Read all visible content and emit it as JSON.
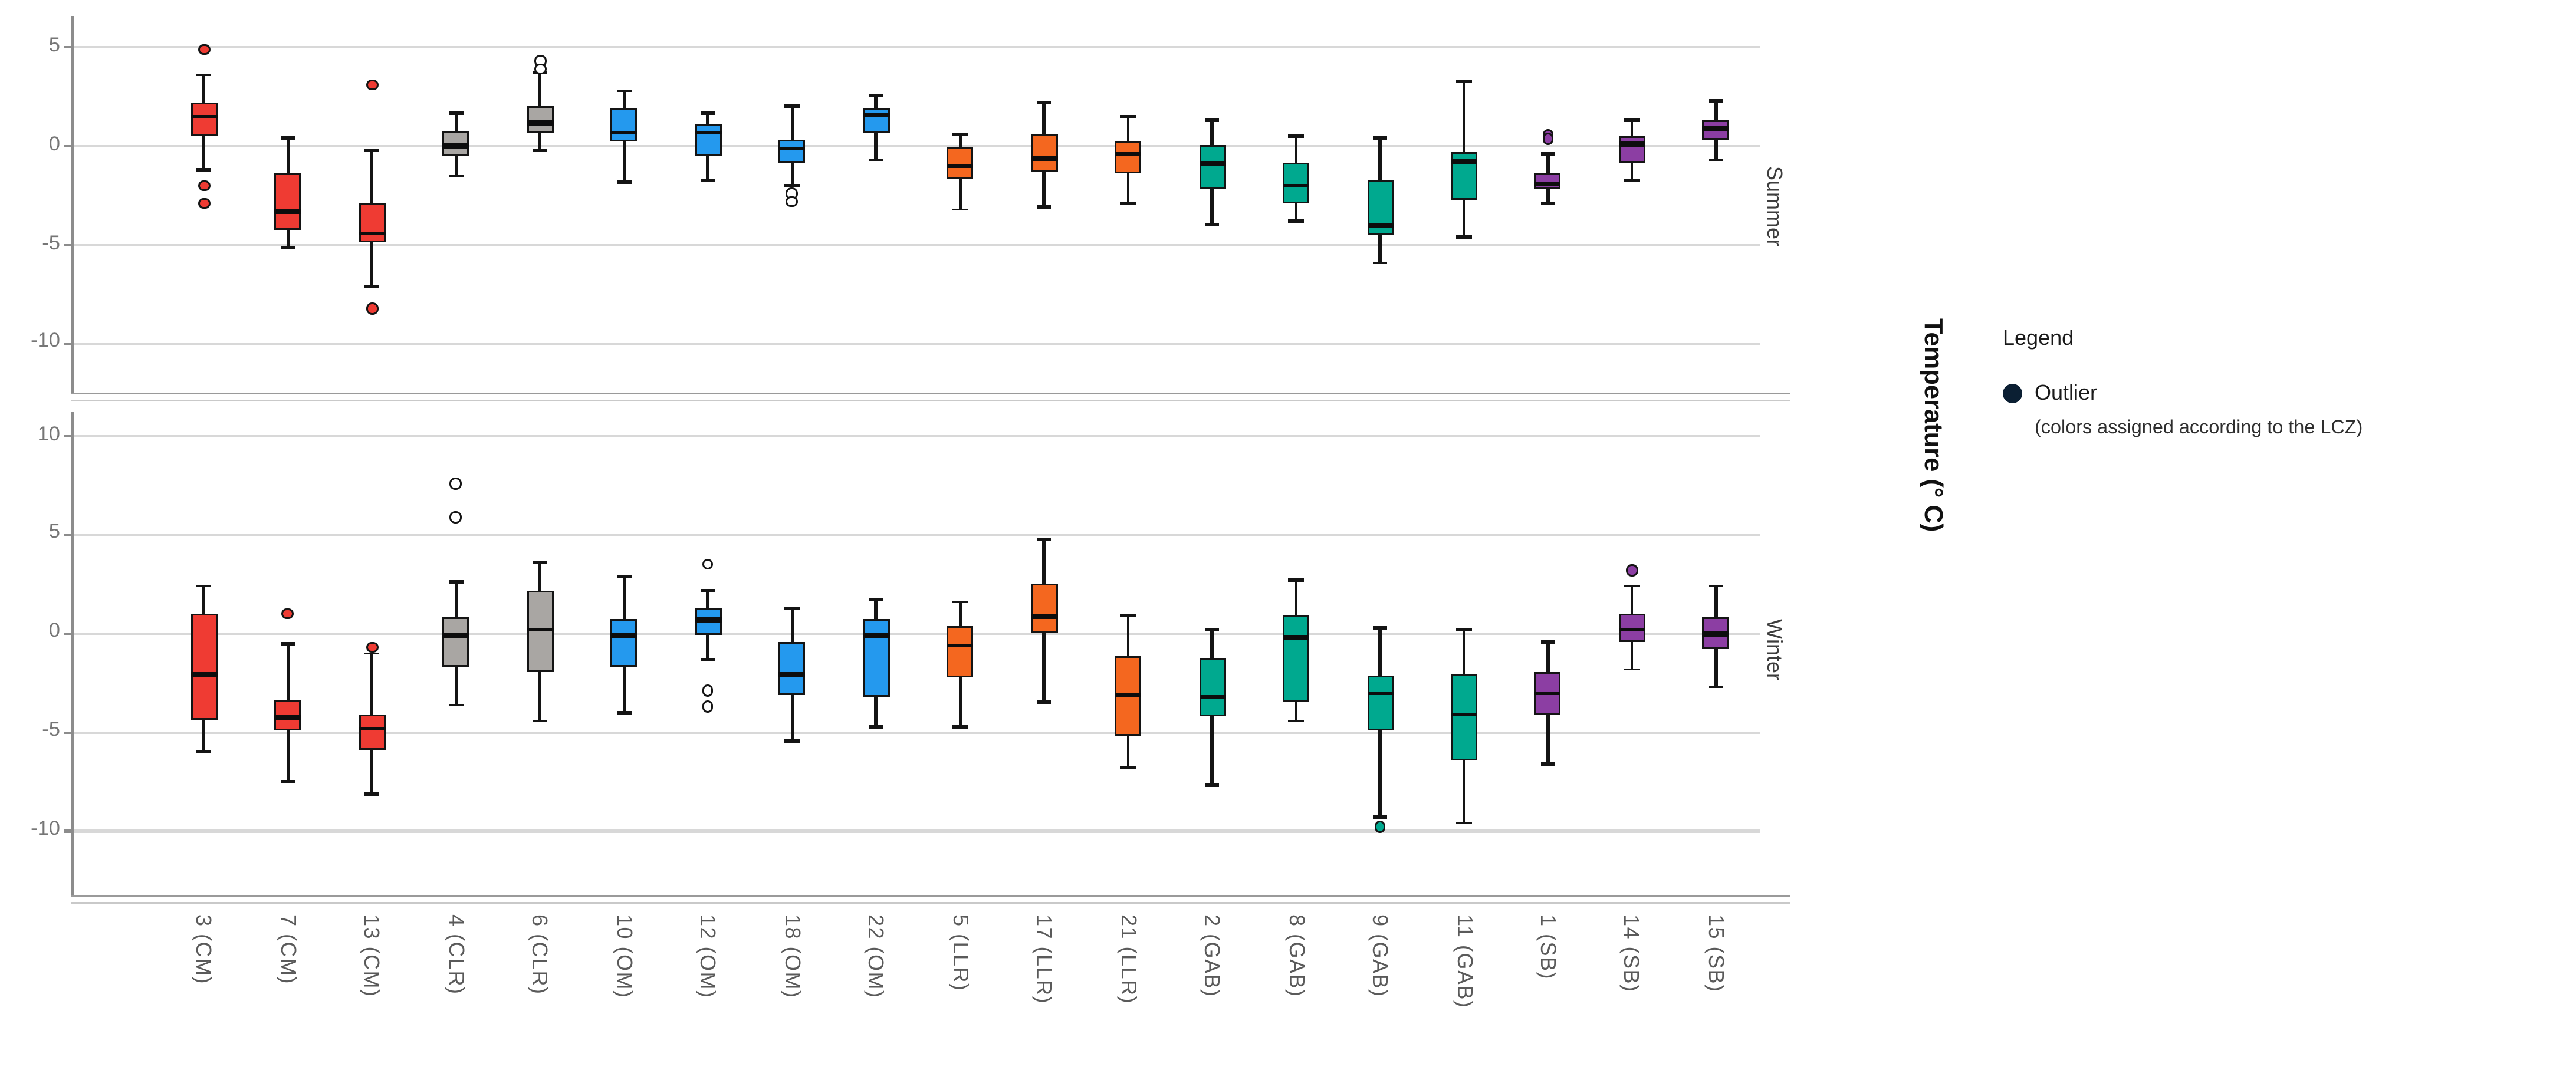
{
  "figure": {
    "background": "#ffffff",
    "accent_axis_color": "#8c8c8c",
    "gridline_color": "#d8d8d8"
  },
  "chart_data": {
    "type": "boxplot",
    "orientation": "vertical",
    "title": "",
    "ylabel": "Temperature (° C)",
    "xlabel": "",
    "grid": true,
    "legend_position": "right",
    "categories": [
      "3 (CM)",
      "7 (CM)",
      "13 (CM)",
      "4 (CLR)",
      "6 (CLR)",
      "10 (OM)",
      "12 (OM)",
      "18 (OM)",
      "22 (OM)",
      "5 (LLR)",
      "17 (LLR)",
      "21 (LLR)",
      "2 (GAB)",
      "8 (GAB)",
      "9 (GAB)",
      "11 (GAB)",
      "1 (SB)",
      "14 (SB)",
      "15 (SB)"
    ],
    "groups": {
      "CM": {
        "color": "#EF3B33",
        "outlier_fill": "#EF3B33"
      },
      "CLR": {
        "color": "#A9A6A3",
        "outlier_fill": "#FFFFFF"
      },
      "OM": {
        "color": "#2499EE",
        "outlier_fill": "#FFFFFF"
      },
      "LLR": {
        "color": "#F4671F",
        "outlier_fill": "#F4671F"
      },
      "GAB": {
        "color": "#00A98F",
        "outlier_fill": "#00A98F"
      },
      "SB": {
        "color": "#8C3EA3",
        "outlier_fill": "#8C3EA3"
      }
    },
    "panels": [
      {
        "label": "Summer",
        "yticks": [
          5,
          0,
          -5,
          -10
        ],
        "ylim": [
          -12.5,
          6.5
        ],
        "boxes": [
          {
            "category": "3 (CM)",
            "group": "CM",
            "low": -1.2,
            "q1": 0.5,
            "median": 1.5,
            "q3": 2.2,
            "high": 3.6,
            "outliers": [
              4.9,
              -2.0,
              -2.9
            ]
          },
          {
            "category": "7 (CM)",
            "group": "CM",
            "low": -5.1,
            "q1": -4.2,
            "median": -3.3,
            "q3": -1.4,
            "high": 0.4,
            "outliers": []
          },
          {
            "category": "13 (CM)",
            "group": "CM",
            "low": -7.1,
            "q1": -4.9,
            "median": -4.4,
            "q3": -2.9,
            "high": -0.2,
            "outliers": [
              3.1,
              -8.2
            ]
          },
          {
            "category": "4 (CLR)",
            "group": "CLR",
            "low": -1.5,
            "q1": -0.5,
            "median": 0.0,
            "q3": 0.8,
            "high": 1.7,
            "outliers": []
          },
          {
            "category": "6 (CLR)",
            "group": "CLR",
            "low": -0.2,
            "q1": 0.7,
            "median": 1.2,
            "q3": 2.0,
            "high": 3.7,
            "outliers": [
              4.3,
              3.9
            ]
          },
          {
            "category": "10 (OM)",
            "group": "OM",
            "low": -1.8,
            "q1": 0.2,
            "median": 0.7,
            "q3": 1.9,
            "high": 2.8,
            "outliers": []
          },
          {
            "category": "12 (OM)",
            "group": "OM",
            "low": -1.7,
            "q1": -0.5,
            "median": 0.7,
            "q3": 1.1,
            "high": 1.7,
            "outliers": []
          },
          {
            "category": "18 (OM)",
            "group": "OM",
            "low": -2.0,
            "q1": -0.8,
            "median": -0.1,
            "q3": 0.3,
            "high": 2.0,
            "outliers": [
              -2.4,
              -2.8
            ]
          },
          {
            "category": "22 (OM)",
            "group": "OM",
            "low": -0.7,
            "q1": 0.7,
            "median": 1.6,
            "q3": 1.9,
            "high": 2.6,
            "outliers": []
          },
          {
            "category": "5 (LLR)",
            "group": "LLR",
            "low": -3.2,
            "q1": -1.6,
            "median": -1.0,
            "q3": 0.0,
            "high": 0.6,
            "outliers": []
          },
          {
            "category": "17 (LLR)",
            "group": "LLR",
            "low": -3.1,
            "q1": -1.3,
            "median": -0.6,
            "q3": 0.6,
            "high": 2.2,
            "outliers": []
          },
          {
            "category": "21 (LLR)",
            "group": "LLR",
            "low": -2.9,
            "q1": -1.4,
            "median": -0.4,
            "q3": 0.2,
            "high": 1.5,
            "outliers": []
          },
          {
            "category": "2 (GAB)",
            "group": "GAB",
            "low": -4.0,
            "q1": -2.2,
            "median": -0.9,
            "q3": 0.1,
            "high": 1.3,
            "outliers": []
          },
          {
            "category": "8 (GAB)",
            "group": "GAB",
            "low": -3.8,
            "q1": -2.9,
            "median": -2.0,
            "q3": -0.8,
            "high": 0.5,
            "outliers": []
          },
          {
            "category": "9 (GAB)",
            "group": "GAB",
            "low": -5.9,
            "q1": -4.5,
            "median": -4.0,
            "q3": -1.7,
            "high": 0.4,
            "outliers": []
          },
          {
            "category": "11 (GAB)",
            "group": "GAB",
            "low": -4.6,
            "q1": -2.7,
            "median": -0.8,
            "q3": -0.3,
            "high": 3.3,
            "outliers": []
          },
          {
            "category": "1 (SB)",
            "group": "SB",
            "low": -2.9,
            "q1": -2.2,
            "median": -1.9,
            "q3": -1.4,
            "high": -0.4,
            "outliers": [
              0.6,
              0.4
            ]
          },
          {
            "category": "14 (SB)",
            "group": "SB",
            "low": -1.7,
            "q1": -0.8,
            "median": 0.1,
            "q3": 0.5,
            "high": 1.3,
            "outliers": []
          },
          {
            "category": "15 (SB)",
            "group": "SB",
            "low": -0.7,
            "q1": 0.3,
            "median": 0.9,
            "q3": 1.3,
            "high": 2.3,
            "outliers": []
          }
        ]
      },
      {
        "label": "Winter",
        "yticks": [
          10,
          5,
          0,
          -5,
          -10
        ],
        "ylim": [
          -13.3,
          11.2
        ],
        "boxes": [
          {
            "category": "3 (CM)",
            "group": "CM",
            "low": -6.0,
            "q1": -4.4,
            "median": -2.1,
            "q3": 1.0,
            "high": 2.4,
            "outliers": []
          },
          {
            "category": "7 (CM)",
            "group": "CM",
            "low": -7.5,
            "q1": -4.9,
            "median": -4.2,
            "q3": -3.4,
            "high": -0.5,
            "outliers": [
              1.0
            ]
          },
          {
            "category": "13 (CM)",
            "group": "CM",
            "low": -8.1,
            "q1": -5.9,
            "median": -4.8,
            "q3": -4.1,
            "high": -1.0,
            "outliers": [
              -0.7
            ]
          },
          {
            "category": "4 (CLR)",
            "group": "CLR",
            "low": -3.6,
            "q1": -1.7,
            "median": -0.1,
            "q3": 0.8,
            "high": 2.6,
            "outliers": [
              7.6,
              5.9
            ]
          },
          {
            "category": "6 (CLR)",
            "group": "CLR",
            "low": -4.4,
            "q1": -1.9,
            "median": 0.2,
            "q3": 2.2,
            "high": 3.6,
            "outliers": []
          },
          {
            "category": "10 (OM)",
            "group": "OM",
            "low": -4.0,
            "q1": -1.7,
            "median": -0.1,
            "q3": 0.7,
            "high": 2.9,
            "outliers": []
          },
          {
            "category": "12 (OM)",
            "group": "OM",
            "low": -1.3,
            "q1": -0.1,
            "median": 0.7,
            "q3": 1.3,
            "high": 2.2,
            "outliers": [
              3.5,
              -2.9,
              -3.7
            ]
          },
          {
            "category": "18 (OM)",
            "group": "OM",
            "low": -5.4,
            "q1": -3.1,
            "median": -2.1,
            "q3": -0.4,
            "high": 1.3,
            "outliers": []
          },
          {
            "category": "22 (OM)",
            "group": "OM",
            "low": -4.7,
            "q1": -3.2,
            "median": -0.1,
            "q3": 0.7,
            "high": 1.7,
            "outliers": []
          },
          {
            "category": "5 (LLR)",
            "group": "LLR",
            "low": -4.7,
            "q1": -2.2,
            "median": -0.6,
            "q3": 0.4,
            "high": 1.6,
            "outliers": []
          },
          {
            "category": "17 (LLR)",
            "group": "LLR",
            "low": -3.5,
            "q1": 0.0,
            "median": 0.9,
            "q3": 2.5,
            "high": 4.8,
            "outliers": []
          },
          {
            "category": "21 (LLR)",
            "group": "LLR",
            "low": -6.8,
            "q1": -5.2,
            "median": -3.1,
            "q3": -1.1,
            "high": 0.9,
            "outliers": []
          },
          {
            "category": "2 (GAB)",
            "group": "GAB",
            "low": -7.7,
            "q1": -4.2,
            "median": -3.2,
            "q3": -1.2,
            "high": 0.2,
            "outliers": []
          },
          {
            "category": "8 (GAB)",
            "group": "GAB",
            "low": -4.4,
            "q1": -3.5,
            "median": -0.2,
            "q3": 0.9,
            "high": 2.7,
            "outliers": []
          },
          {
            "category": "9 (GAB)",
            "group": "GAB",
            "low": -9.3,
            "q1": -4.9,
            "median": -3.0,
            "q3": -2.1,
            "high": 0.3,
            "outliers": [
              -9.8
            ]
          },
          {
            "category": "11 (GAB)",
            "group": "GAB",
            "low": -9.6,
            "q1": -6.4,
            "median": -4.1,
            "q3": -2.0,
            "high": 0.2,
            "outliers": []
          },
          {
            "category": "1 (SB)",
            "group": "SB",
            "low": -6.6,
            "q1": -4.1,
            "median": -3.0,
            "q3": -1.9,
            "high": -0.4,
            "outliers": []
          },
          {
            "category": "14 (SB)",
            "group": "SB",
            "low": -1.8,
            "q1": -0.4,
            "median": 0.2,
            "q3": 1.0,
            "high": 2.4,
            "outliers": [
              3.2
            ]
          },
          {
            "category": "15 (SB)",
            "group": "SB",
            "low": -2.7,
            "q1": -0.8,
            "median": 0.0,
            "q3": 0.8,
            "high": 2.4,
            "outliers": []
          }
        ]
      }
    ],
    "legend": {
      "title": "Legend",
      "label": "Outlier",
      "note": "(colors assigned according to the LCZ)",
      "marker_color": "#0B1F33"
    }
  }
}
